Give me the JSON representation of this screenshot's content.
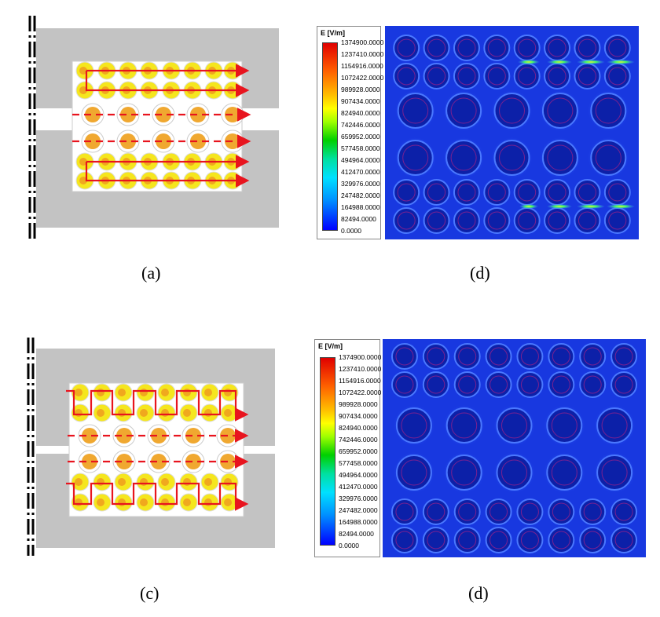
{
  "captions": {
    "a": "(a)",
    "d_top": "(d)",
    "c": "(c)",
    "d_bottom": "(d)"
  },
  "legend": {
    "title": "E [V/m]",
    "ticks": [
      "1374900.0000",
      "1237410.0000",
      "1154916.0000",
      "1072422.0000",
      "989928.0000",
      "907434.0000",
      "824940.0000",
      "742446.0000",
      "659952.0000",
      "577458.0000",
      "494964.0000",
      "412470.0000",
      "329976.0000",
      "247482.0000",
      "164988.0000",
      "82494.0000",
      "0.0000"
    ]
  },
  "colors": {
    "ground": "#c3c3c3",
    "pin_outer": "#f5e61e",
    "pin_center": "#f0a81e",
    "coax_pin": "#f0a830",
    "path_red": "#e8141e",
    "field_bg": "#1838e0"
  }
}
